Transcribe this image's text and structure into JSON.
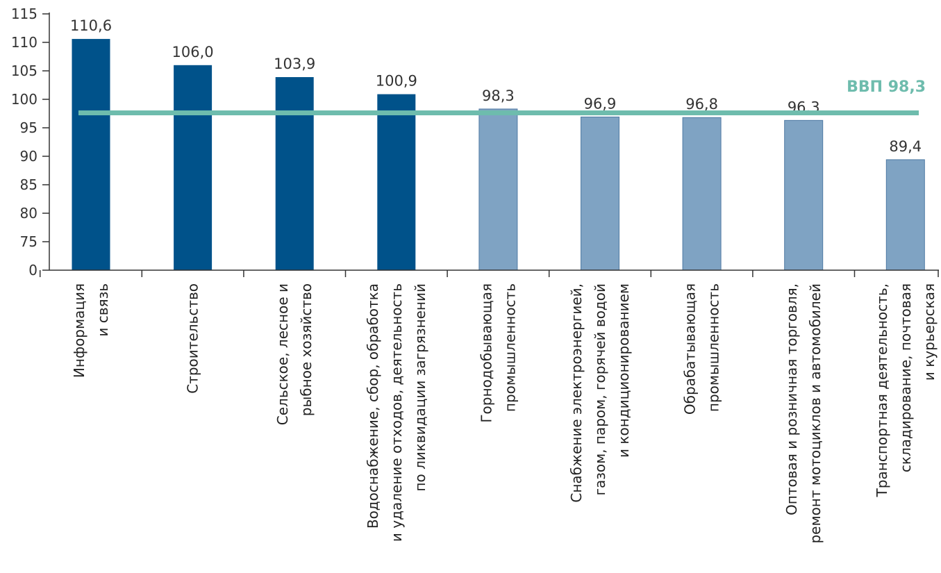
{
  "chart_data": {
    "type": "bar",
    "categories": [
      [
        "Информация",
        "и связь"
      ],
      [
        "Строительство"
      ],
      [
        "Сельское, лесное и",
        "рыбное хозяйство"
      ],
      [
        "Водоснабжение, сбор, обработка",
        "и удаление отходов, деятельность",
        "по ликвидации загрязнений"
      ],
      [
        "Горнодобывающая",
        "промышленность"
      ],
      [
        "Снабжение электроэнергией,",
        "газом, паром, горячей водой",
        "и кондиционированием"
      ],
      [
        "Обрабатывающая",
        "промышленность"
      ],
      [
        "Оптовая и розничная торговля,",
        "ремонт мотоциклов и автомобилей"
      ],
      [
        "Транспортная деятельность,",
        "складирование, почтовая",
        "и курьерская"
      ]
    ],
    "values": [
      110.6,
      106.0,
      103.9,
      100.9,
      98.3,
      96.9,
      96.8,
      96.3,
      89.4
    ],
    "value_labels": [
      "110,6",
      "106,0",
      "103,9",
      "100,9",
      "98,3",
      "96,9",
      "96,8",
      "96,3",
      "89,4"
    ],
    "highlight": [
      true,
      true,
      true,
      true,
      false,
      false,
      false,
      false,
      false
    ],
    "yticks": [
      0,
      75,
      80,
      85,
      90,
      95,
      100,
      105,
      110,
      115
    ],
    "ylim": [
      70,
      115
    ],
    "axis_break": true,
    "reference_line": {
      "value": 98.3,
      "label": "ВВП 98,3"
    },
    "colors": {
      "above": "#00528a",
      "below": "#7fa3c3",
      "reference": "#6ebcad",
      "axis": "#333333"
    },
    "grid": false
  }
}
